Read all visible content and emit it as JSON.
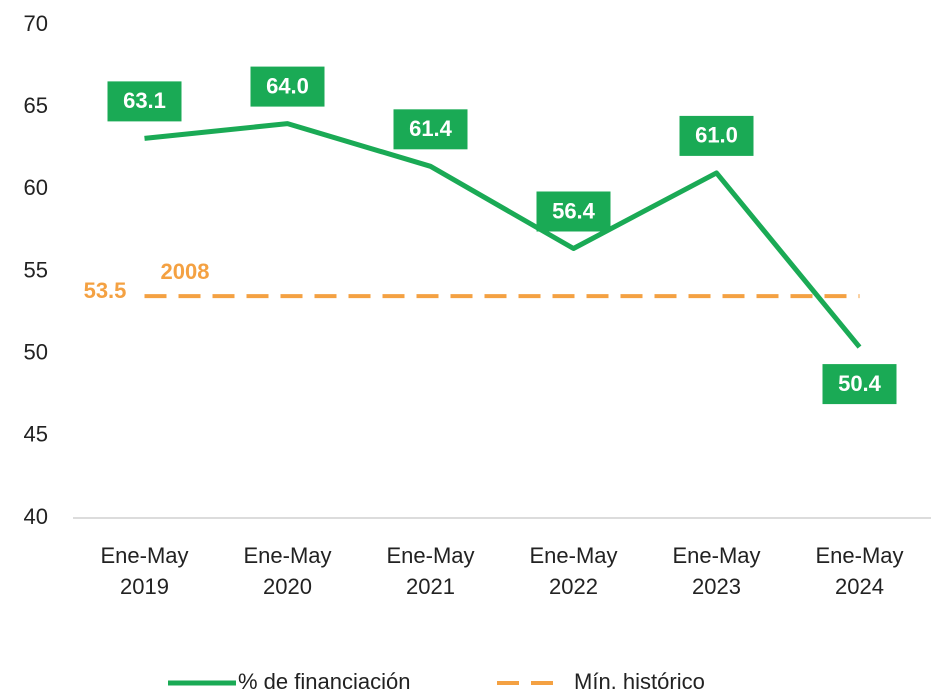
{
  "chart_data": {
    "type": "line",
    "categories": [
      "Ene-May 2019",
      "Ene-May 2020",
      "Ene-May 2021",
      "Ene-May 2022",
      "Ene-May 2023",
      "Ene-May 2024"
    ],
    "series": [
      {
        "name": "% de financiación",
        "color": "#1aaa55",
        "values": [
          63.1,
          64.0,
          61.4,
          56.4,
          61.0,
          50.4
        ],
        "value_labels": [
          "63.1",
          "64.0",
          "61.4",
          "56.4",
          "61.0",
          "50.4"
        ]
      },
      {
        "name": "Mín. histórico",
        "color": "#f4a142",
        "dashed": true,
        "values": [
          53.5,
          53.5,
          53.5,
          53.5,
          53.5,
          53.5
        ]
      }
    ],
    "annotation": "2008",
    "ylim": [
      40,
      70
    ],
    "yticks": [
      40,
      45,
      50,
      55,
      60,
      65,
      70
    ],
    "grid": false
  }
}
